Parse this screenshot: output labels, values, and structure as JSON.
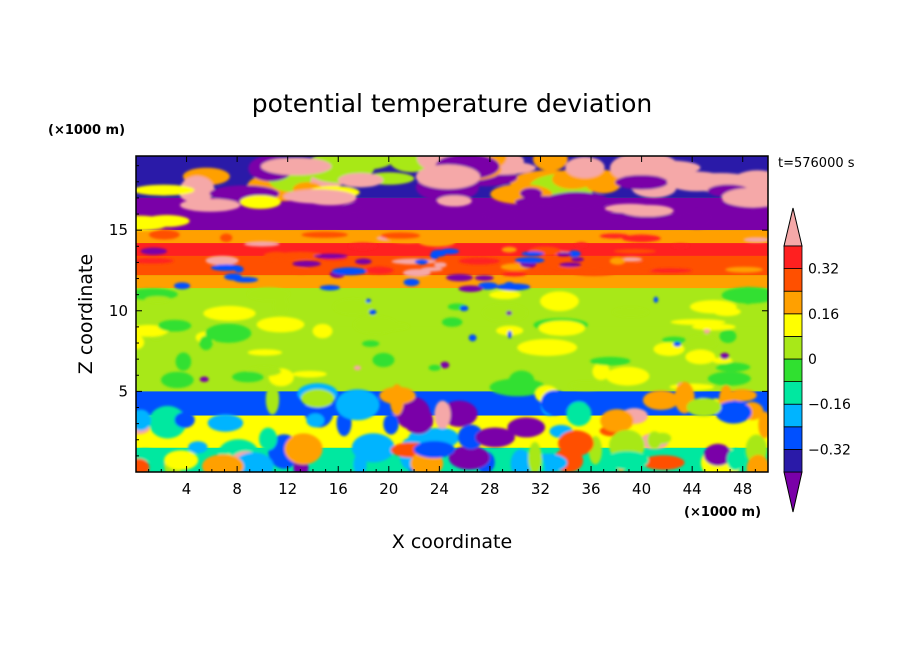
{
  "chart_data": {
    "type": "heatmap",
    "title": "potential temperature deviation",
    "time_label": "t=576000 s",
    "xlabel": "X coordinate",
    "ylabel": "Z coordinate",
    "x_unit": "(×1000 m)",
    "y_unit": "(×1000 m)",
    "xlim": [
      0,
      50
    ],
    "ylim": [
      0,
      19.6
    ],
    "x_ticks": [
      4,
      8,
      12,
      16,
      20,
      24,
      28,
      32,
      36,
      40,
      44,
      48
    ],
    "y_ticks": [
      5,
      10,
      15
    ],
    "colorbar": {
      "levels": [
        -0.4,
        -0.32,
        -0.24,
        -0.16,
        -0.08,
        0,
        0.08,
        0.16,
        0.24,
        0.32,
        0.4
      ],
      "tick_labels": [
        "0.32",
        "0.16",
        "0",
        "−0.16",
        "−0.32"
      ],
      "tick_values": [
        0.32,
        0.16,
        0,
        -0.16,
        -0.32
      ],
      "colors": [
        "#7a00a8",
        "#2a1aa8",
        "#0050ff",
        "#00b4ff",
        "#00e8a0",
        "#30e030",
        "#a8e818",
        "#ffff00",
        "#ffa000",
        "#ff5000",
        "#ff2020",
        "#f5a8a8"
      ]
    },
    "bands": [
      {
        "z": [
          17.0,
          19.6
        ],
        "value": -0.4
      },
      {
        "z": [
          15.0,
          17.0
        ],
        "value": -0.45
      },
      {
        "z": [
          14.2,
          15.0
        ],
        "value": 0.2
      },
      {
        "z": [
          13.4,
          14.2
        ],
        "value": 0.36
      },
      {
        "z": [
          12.2,
          13.4
        ],
        "value": 0.28
      },
      {
        "z": [
          11.4,
          12.2
        ],
        "value": 0.18
      },
      {
        "z": [
          9.0,
          11.4
        ],
        "value": 0.04
      },
      {
        "z": [
          5.0,
          9.0
        ],
        "value": 0.02
      },
      {
        "z": [
          3.5,
          5.0
        ],
        "value": -0.3
      },
      {
        "z": [
          1.5,
          3.5
        ],
        "value": 0.12
      },
      {
        "z": [
          0,
          1.5
        ],
        "value": -0.1
      }
    ]
  }
}
